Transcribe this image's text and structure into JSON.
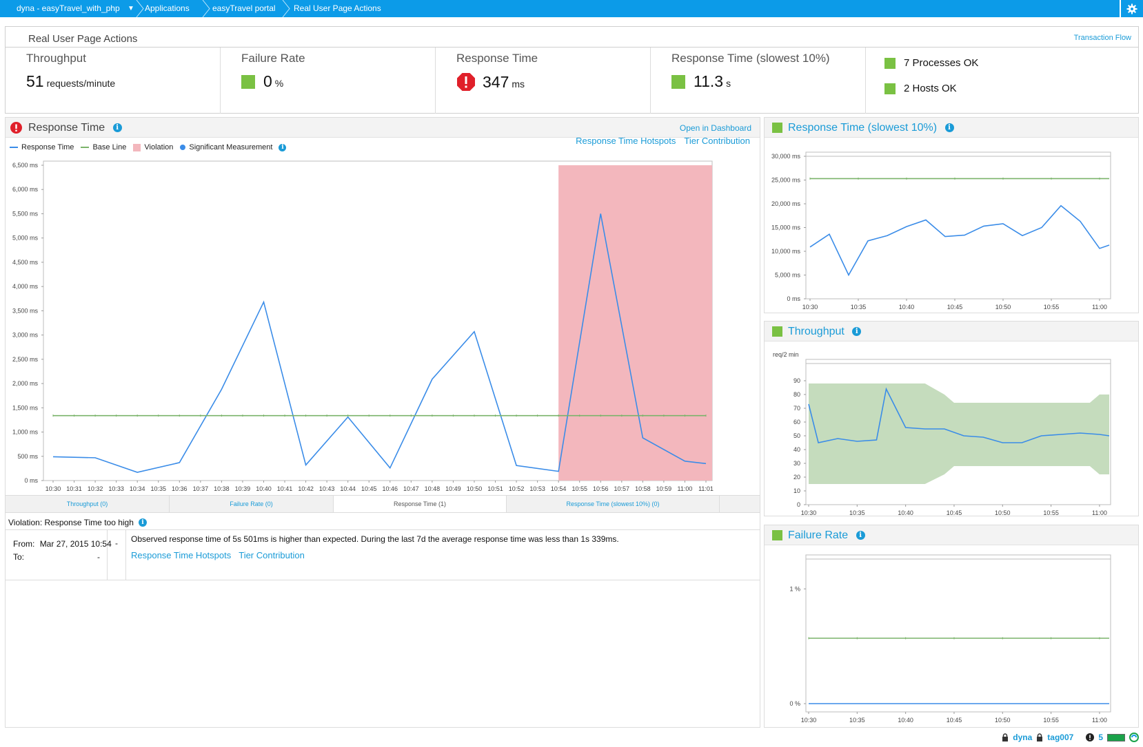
{
  "breadcrumb": [
    {
      "label": "dyna  - easyTravel_with_php"
    },
    {
      "label": "Applications"
    },
    {
      "label": "easyTravel portal"
    },
    {
      "label": "Real User Page Actions"
    }
  ],
  "header": {
    "title": "Real User Page Actions",
    "link": "Transaction Flow",
    "kpis": [
      {
        "label": "Throughput",
        "value": "51",
        "unit": "requests/minute"
      },
      {
        "label": "Failure Rate",
        "value": "0",
        "unit": "%",
        "status": "ok"
      },
      {
        "label": "Response Time",
        "value": "347",
        "unit": "ms",
        "status": "error"
      },
      {
        "label": "Response Time (slowest 10%)",
        "value": "11.3",
        "unit": "s",
        "status": "ok"
      }
    ],
    "status_items": [
      {
        "label": "7 Processes OK"
      },
      {
        "label": "2 Hosts OK"
      }
    ]
  },
  "main": {
    "title": "Response Time",
    "open_link": "Open in Dashboard",
    "legend": {
      "response_time": "Response Time",
      "base_line": "Base Line",
      "violation": "Violation",
      "significant": "Significant Measurement"
    },
    "links": {
      "hotspots": "Response Time Hotspots",
      "tier": "Tier Contribution"
    },
    "tabs": [
      {
        "label": "Throughput (0)"
      },
      {
        "label": "Failure Rate (0)"
      },
      {
        "label": "Response Time (1)"
      },
      {
        "label": "Response Time (slowest 10%) (0)"
      }
    ],
    "violation": {
      "title": "Violation: Response Time too high",
      "from_label": "From:",
      "from_value": "Mar 27, 2015 10:54",
      "to_label": "To:",
      "dash": "-",
      "message": "Observed response time of 5s 501ms is higher than expected. During the last 7d the average response time was less than 1s 339ms.",
      "link_hotspots": "Response Time Hotspots",
      "link_tier": "Tier Contribution"
    }
  },
  "side": {
    "slowest_title": "Response Time (slowest 10%)",
    "throughput_title": "Throughput",
    "failure_title": "Failure Rate"
  },
  "statusbar": {
    "user": "dyna",
    "tag": "tag007",
    "count": "5"
  },
  "colors": {
    "accent": "#0c9be8",
    "link": "#1a9bd7",
    "ok": "#7ac143",
    "error": "#e0202a",
    "series": "#3a8ce8",
    "baseline": "#7ab36a",
    "violation": "#f3b7bd"
  },
  "chart_data": [
    {
      "type": "line",
      "name": "response-time",
      "x": [
        "10:30",
        "10:31",
        "10:32",
        "10:33",
        "10:34",
        "10:35",
        "10:36",
        "10:37",
        "10:38",
        "10:39",
        "10:40",
        "10:41",
        "10:42",
        "10:43",
        "10:44",
        "10:45",
        "10:46",
        "10:47",
        "10:48",
        "10:49",
        "10:50",
        "10:51",
        "10:52",
        "10:53",
        "10:54",
        "10:55",
        "10:56",
        "10:57",
        "10:58",
        "10:59",
        "11:00",
        "11:01"
      ],
      "x_ticks": [
        "10:30",
        "10:31",
        "10:32",
        "10:33",
        "10:34",
        "10:35",
        "10:36",
        "10:37",
        "10:38",
        "10:39",
        "10:40",
        "10:41",
        "10:42",
        "10:43",
        "10:44",
        "10:45",
        "10:46",
        "10:47",
        "10:48",
        "10:49",
        "10:50",
        "10:51",
        "10:52",
        "10:53",
        "10:54",
        "10:55",
        "10:56",
        "10:57",
        "10:58",
        "10:59",
        "11:00",
        "11:01"
      ],
      "series": [
        {
          "name": "Response Time",
          "points": [
            [
              "10:30",
              490
            ],
            [
              "10:32",
              470
            ],
            [
              "10:34",
              170
            ],
            [
              "10:36",
              370
            ],
            [
              "10:38",
              1880
            ],
            [
              "10:40",
              3680
            ],
            [
              "10:42",
              320
            ],
            [
              "10:44",
              1310
            ],
            [
              "10:46",
              260
            ],
            [
              "10:48",
              2090
            ],
            [
              "10:50",
              3070
            ],
            [
              "10:52",
              310
            ],
            [
              "10:54",
              190
            ],
            [
              "10:56",
              5501
            ],
            [
              "10:58",
              880
            ],
            [
              "11:00",
              400
            ],
            [
              "11:01",
              350
            ]
          ]
        },
        {
          "name": "Base Line",
          "points": [
            [
              "10:30",
              1339
            ],
            [
              "11:01",
              1339
            ]
          ]
        }
      ],
      "violation": {
        "from": "10:54",
        "to": "11:01"
      },
      "y_ticks": [
        0,
        500,
        1000,
        1500,
        2000,
        2500,
        3000,
        3500,
        4000,
        4500,
        5000,
        5500,
        6000,
        6500
      ],
      "y_unit": "ms",
      "ylim": [
        0,
        6500
      ]
    },
    {
      "type": "line",
      "name": "slowest-10",
      "x_ticks": [
        "10:30",
        "10:35",
        "10:40",
        "10:45",
        "10:50",
        "10:55",
        "11:00"
      ],
      "series": [
        {
          "name": "Response Time (slowest 10%)",
          "points": [
            [
              "10:30",
              10900
            ],
            [
              "10:32",
              13600
            ],
            [
              "10:34",
              5000
            ],
            [
              "10:36",
              12200
            ],
            [
              "10:38",
              13300
            ],
            [
              "10:40",
              15200
            ],
            [
              "10:42",
              16600
            ],
            [
              "10:44",
              13100
            ],
            [
              "10:46",
              13400
            ],
            [
              "10:48",
              15300
            ],
            [
              "10:50",
              15800
            ],
            [
              "10:52",
              13300
            ],
            [
              "10:54",
              15000
            ],
            [
              "10:56",
              19600
            ],
            [
              "10:58",
              16300
            ],
            [
              "11:00",
              10600
            ],
            [
              "11:01",
              11300
            ]
          ]
        },
        {
          "name": "Base Line",
          "points": [
            [
              "10:30",
              25300
            ],
            [
              "11:01",
              25300
            ]
          ]
        }
      ],
      "y_ticks": [
        0,
        5000,
        10000,
        15000,
        20000,
        25000,
        30000
      ],
      "y_unit": "ms",
      "ylim": [
        0,
        30000
      ]
    },
    {
      "type": "area",
      "name": "throughput",
      "ylabel": "req/2 min",
      "x_ticks": [
        "10:30",
        "10:35",
        "10:40",
        "10:45",
        "10:50",
        "10:55",
        "11:00"
      ],
      "band": {
        "x": [
          "10:30",
          "10:42",
          "10:44",
          "10:45",
          "10:58",
          "10:59",
          "11:00",
          "11:01"
        ],
        "upper": [
          88,
          88,
          80,
          74,
          74,
          74,
          80,
          80
        ],
        "lower": [
          15,
          15,
          22,
          28,
          28,
          28,
          22,
          22
        ]
      },
      "series": [
        {
          "name": "Throughput",
          "points": [
            [
              "10:30",
              73
            ],
            [
              "10:31",
              45
            ],
            [
              "10:33",
              48
            ],
            [
              "10:35",
              46
            ],
            [
              "10:37",
              47
            ],
            [
              "10:38",
              84
            ],
            [
              "10:40",
              56
            ],
            [
              "10:42",
              55
            ],
            [
              "10:44",
              55
            ],
            [
              "10:46",
              50
            ],
            [
              "10:48",
              49
            ],
            [
              "10:50",
              45
            ],
            [
              "10:52",
              45
            ],
            [
              "10:54",
              50
            ],
            [
              "10:56",
              51
            ],
            [
              "10:58",
              52
            ],
            [
              "11:00",
              51
            ],
            [
              "11:01",
              50
            ]
          ]
        }
      ],
      "y_ticks": [
        0,
        10,
        20,
        30,
        40,
        50,
        60,
        70,
        80,
        90
      ],
      "ylim": [
        0,
        100
      ]
    },
    {
      "type": "line",
      "name": "failure-rate",
      "x_ticks": [
        "10:30",
        "10:35",
        "10:40",
        "10:45",
        "10:50",
        "10:55",
        "11:00"
      ],
      "series": [
        {
          "name": "Failure Rate",
          "points": [
            [
              "10:30",
              0
            ],
            [
              "11:01",
              0
            ]
          ]
        },
        {
          "name": "Base Line",
          "points": [
            [
              "10:30",
              0.57
            ],
            [
              "11:01",
              0.57
            ]
          ]
        }
      ],
      "y_ticks": [
        0,
        1
      ],
      "y_tick_labels": [
        "0 %",
        "1 %"
      ],
      "ylim": [
        0,
        1.2
      ]
    }
  ]
}
